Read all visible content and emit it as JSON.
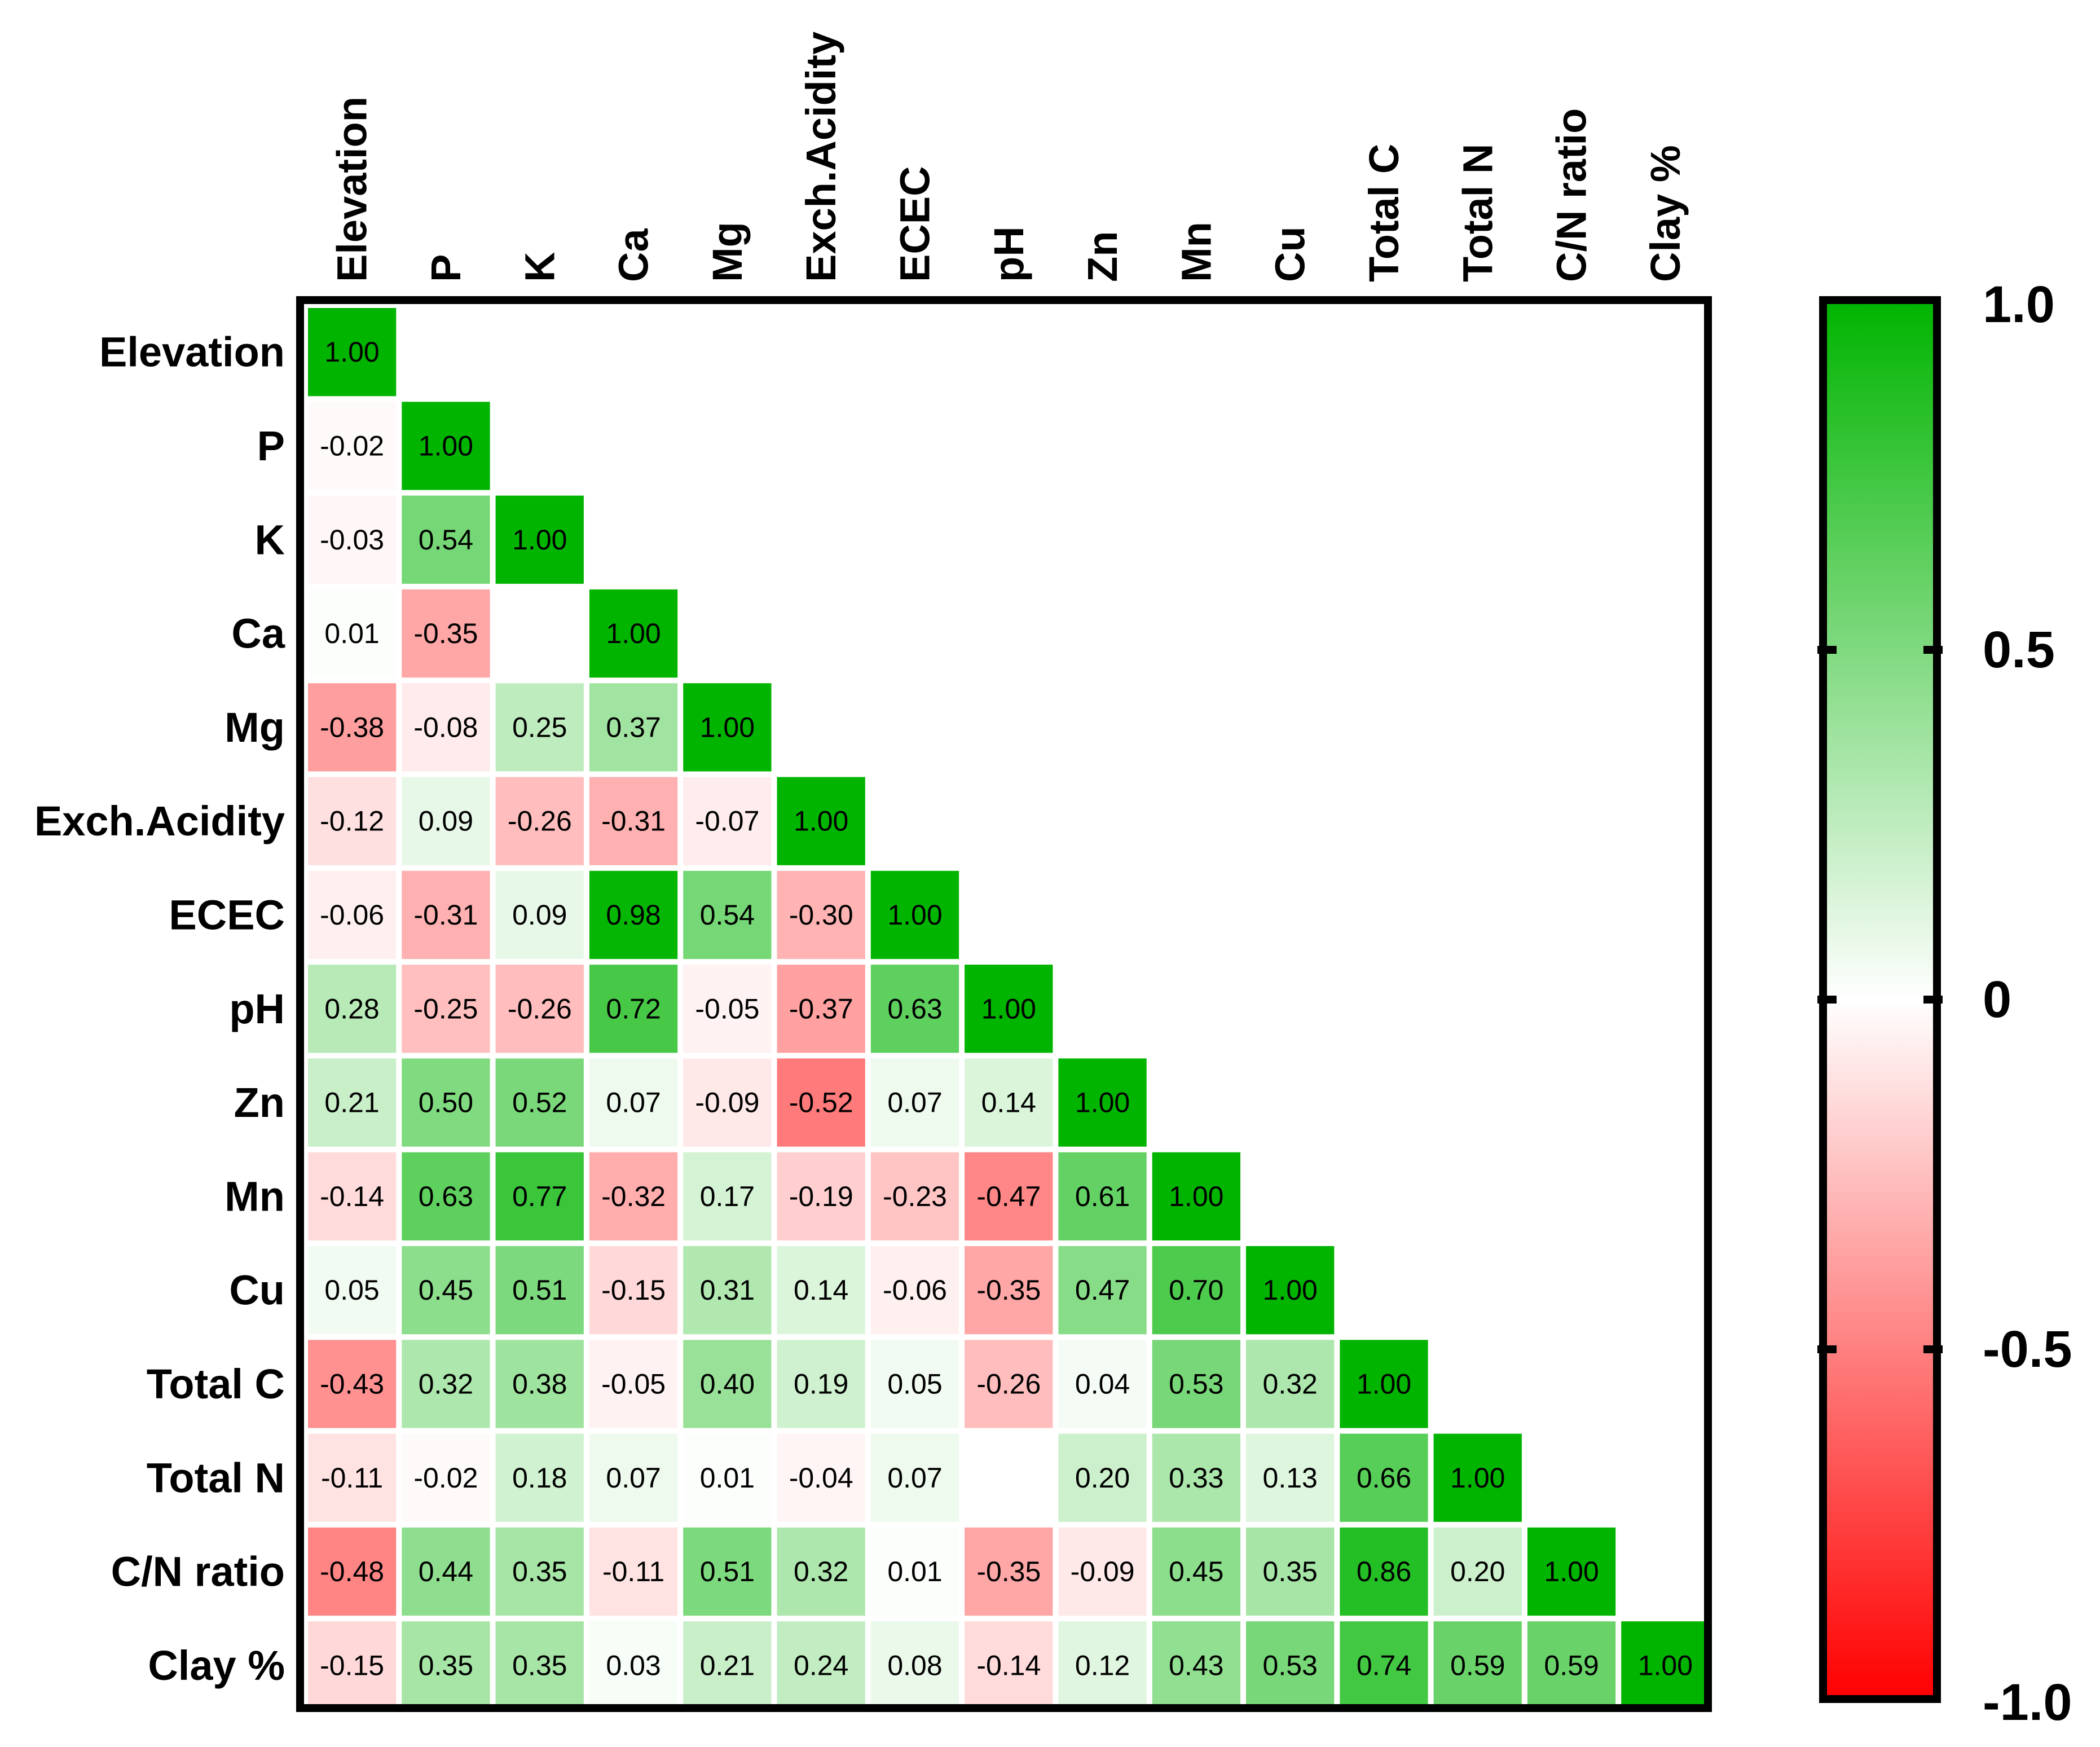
{
  "chart_data": {
    "type": "heatmap",
    "variables": [
      "Elevation",
      "P",
      "K",
      "Ca",
      "Mg",
      "Exch.Acidity",
      "ECEC",
      "pH",
      "Zn",
      "Mn",
      "Cu",
      "Total C",
      "Total N",
      "C/N ratio",
      "Clay %"
    ],
    "lower_triangle": [
      [
        1.0
      ],
      [
        -0.02,
        1.0
      ],
      [
        -0.03,
        0.54,
        1.0
      ],
      [
        0.01,
        -0.35,
        null,
        1.0
      ],
      [
        -0.38,
        -0.08,
        0.25,
        0.37,
        1.0
      ],
      [
        -0.12,
        0.09,
        -0.26,
        -0.31,
        -0.07,
        1.0
      ],
      [
        -0.06,
        -0.31,
        0.09,
        0.98,
        0.54,
        -0.3,
        1.0
      ],
      [
        0.28,
        -0.25,
        -0.26,
        0.72,
        -0.05,
        -0.37,
        0.63,
        1.0
      ],
      [
        0.21,
        0.5,
        0.52,
        0.07,
        -0.09,
        -0.52,
        0.07,
        0.14,
        1.0
      ],
      [
        -0.14,
        0.63,
        0.77,
        -0.32,
        0.17,
        -0.19,
        -0.23,
        -0.47,
        0.61,
        1.0
      ],
      [
        0.05,
        0.45,
        0.51,
        -0.15,
        0.31,
        0.14,
        -0.06,
        -0.35,
        0.47,
        0.7,
        1.0
      ],
      [
        -0.43,
        0.32,
        0.38,
        -0.05,
        0.4,
        0.19,
        0.05,
        -0.26,
        0.04,
        0.53,
        0.32,
        1.0
      ],
      [
        -0.11,
        -0.02,
        0.18,
        0.07,
        0.01,
        -0.04,
        0.07,
        null,
        0.2,
        0.33,
        0.13,
        0.66,
        1.0
      ],
      [
        -0.48,
        0.44,
        0.35,
        -0.11,
        0.51,
        0.32,
        0.01,
        -0.35,
        -0.09,
        0.45,
        0.35,
        0.86,
        0.2,
        1.0
      ],
      [
        -0.15,
        0.35,
        0.35,
        0.03,
        0.21,
        0.24,
        0.08,
        -0.14,
        0.12,
        0.43,
        0.53,
        0.74,
        0.59,
        0.59,
        1.0
      ]
    ],
    "colorbar": {
      "range": [
        -1.0,
        1.0
      ],
      "tick_labels": [
        "1.0",
        "0.5",
        "0",
        "-0.5",
        "-1.0"
      ],
      "tick_values": [
        1.0,
        0.5,
        0,
        -0.5,
        -1.0
      ],
      "colors": {
        "negative": "#ff0000",
        "zero": "#ffffff",
        "positive": "#00b400"
      }
    },
    "value_format": "2 decimals"
  }
}
